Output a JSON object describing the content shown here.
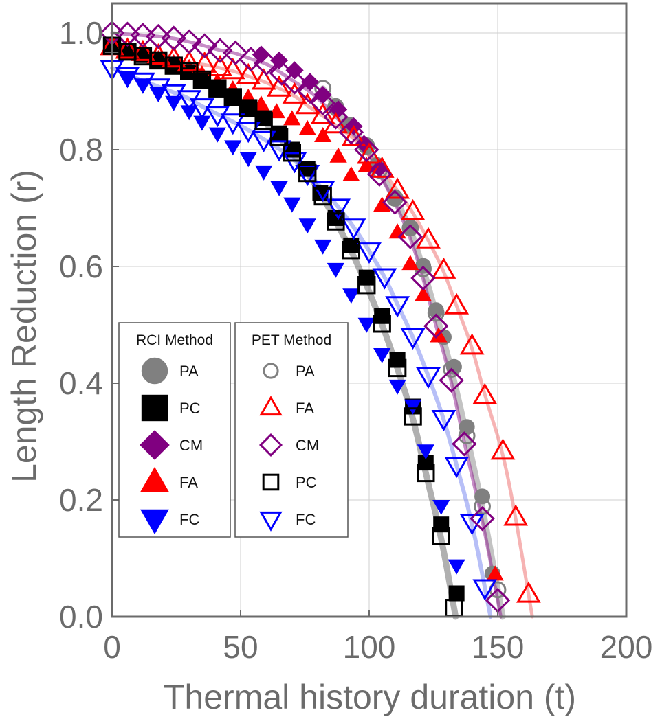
{
  "chart_data": {
    "type": "scatter",
    "xlabel": "Thermal history duration (t)",
    "ylabel": "Length Reduction (r)",
    "xlim": [
      0,
      200
    ],
    "ylim": [
      0,
      1.05
    ],
    "x_ticks": [
      0,
      50,
      100,
      150,
      200
    ],
    "y_ticks": [
      0.0,
      0.2,
      0.4,
      0.6,
      0.8,
      1.0
    ],
    "x_tick_labels": [
      "0",
      "50",
      "100",
      "150",
      "200"
    ],
    "y_tick_labels": [
      "0.0",
      "0.2",
      "0.4",
      "0.6",
      "0.8",
      "1.0"
    ],
    "grid": true,
    "legends": [
      {
        "title": "RCI Method",
        "entries": [
          {
            "label": "PA",
            "series": "rci_pa"
          },
          {
            "label": "PC",
            "series": "rci_pc"
          },
          {
            "label": "CM",
            "series": "rci_cm"
          },
          {
            "label": "FA",
            "series": "rci_fa"
          },
          {
            "label": "FC",
            "series": "rci_fc"
          }
        ]
      },
      {
        "title": "PET Method",
        "entries": [
          {
            "label": "PA",
            "series": "pet_pa"
          },
          {
            "label": "FA",
            "series": "pet_fa"
          },
          {
            "label": "CM",
            "series": "pet_cm"
          },
          {
            "label": "PC",
            "series": "pet_pc"
          },
          {
            "label": "FC",
            "series": "pet_fc"
          }
        ]
      }
    ],
    "fit_curves": [
      {
        "name": "PA fit",
        "color": "#808080",
        "t_end": 152,
        "a": 0.0009091,
        "b": 0.0006353,
        "c": 0.000335,
        "a_m": 0.0009091,
        "t0": 0
      },
      {
        "name": "CM fit",
        "color": "#800080",
        "t_end": 151.5,
        "a": 0.0009091,
        "b": 0.0006353,
        "c": 0.000335,
        "t0": 0
      },
      {
        "name": "FA fit",
        "color": "#f08080",
        "t_end": 164,
        "a": 0.0009091,
        "b": 0.0006353,
        "c": 0.000335,
        "t0": 0
      },
      {
        "name": "PC fit",
        "color": "#606060",
        "t_end": 135,
        "a": 0.0009091,
        "b": 0.0006353,
        "c": 0.000335,
        "t0": 0
      },
      {
        "name": "FC fit",
        "color": "#8090f0",
        "t_end": 146,
        "a": 0.0009091,
        "b": 0.0006353,
        "c": 0.000335,
        "t0": 0
      }
    ],
    "series": [
      {
        "name": "rci_pa",
        "label": "PA",
        "marker": "circle",
        "fill": "#808080",
        "stroke": "#808080",
        "x": [
          87,
          92,
          99,
          103,
          110,
          116,
          121,
          126,
          129,
          133,
          138,
          144,
          148
        ],
        "y": [
          0.875,
          0.843,
          0.808,
          0.774,
          0.719,
          0.666,
          0.601,
          0.525,
          0.479,
          0.428,
          0.325,
          0.206,
          0.074
        ]
      },
      {
        "name": "pet_pa",
        "label": "PA",
        "marker": "circle-open",
        "fill": "none",
        "stroke": "#808080",
        "x": [
          82,
          87,
          92,
          99,
          104,
          110,
          116,
          121,
          126,
          132,
          138,
          144,
          150
        ],
        "y": [
          0.905,
          0.873,
          0.842,
          0.806,
          0.765,
          0.717,
          0.666,
          0.596,
          0.52,
          0.424,
          0.31,
          0.189,
          0.046
        ]
      },
      {
        "name": "rci_cm",
        "label": "CM",
        "marker": "diamond",
        "fill": "#800080",
        "stroke": "#800080",
        "x": [
          58,
          65,
          71,
          77,
          82,
          88,
          94,
          98,
          104
        ],
        "y": [
          0.963,
          0.953,
          0.936,
          0.916,
          0.894,
          0.869,
          0.84,
          0.81,
          0.768
        ]
      },
      {
        "name": "pet_cm",
        "label": "CM",
        "marker": "diamond-open",
        "fill": "none",
        "stroke": "#800080",
        "x": [
          0,
          6,
          12,
          18,
          24,
          30,
          36,
          42,
          48,
          54,
          60,
          66,
          71,
          77,
          82,
          87,
          93,
          99,
          104,
          110,
          116,
          121,
          126,
          132,
          137,
          144,
          150
        ],
        "y": [
          1.0,
          0.998,
          0.996,
          0.994,
          0.991,
          0.985,
          0.978,
          0.97,
          0.966,
          0.955,
          0.948,
          0.931,
          0.916,
          0.9,
          0.88,
          0.856,
          0.83,
          0.8,
          0.758,
          0.71,
          0.651,
          0.58,
          0.498,
          0.405,
          0.296,
          0.168,
          0.028
        ]
      },
      {
        "name": "rci_fa",
        "label": "FA",
        "marker": "triangle-up",
        "fill": "#ff0000",
        "stroke": "#ff0000",
        "x": [
          6,
          12,
          18,
          24,
          30,
          35,
          41,
          47,
          53,
          58,
          64,
          70,
          76,
          82,
          88,
          93,
          99,
          105,
          111,
          116,
          121,
          127,
          149
        ],
        "y": [
          0.965,
          0.96,
          0.955,
          0.948,
          0.94,
          0.929,
          0.916,
          0.903,
          0.889,
          0.877,
          0.864,
          0.852,
          0.835,
          0.823,
          0.788,
          0.756,
          0.772,
          0.704,
          0.658,
          0.604,
          0.55,
          0.48,
          0.072
        ]
      },
      {
        "name": "pet_fa",
        "label": "FA",
        "marker": "triangle-up-open",
        "fill": "none",
        "stroke": "#ff0000",
        "x": [
          0,
          6,
          12,
          18,
          24,
          30,
          36,
          42,
          47,
          53,
          59,
          65,
          71,
          76,
          82,
          87,
          94,
          100,
          105,
          111,
          117,
          123,
          129,
          134,
          140,
          145,
          152,
          157,
          162
        ],
        "y": [
          0.976,
          0.97,
          0.966,
          0.96,
          0.955,
          0.948,
          0.946,
          0.94,
          0.935,
          0.926,
          0.917,
          0.905,
          0.893,
          0.875,
          0.858,
          0.842,
          0.82,
          0.79,
          0.766,
          0.73,
          0.693,
          0.645,
          0.593,
          0.532,
          0.463,
          0.378,
          0.283,
          0.17,
          0.038
        ]
      },
      {
        "name": "rci_pc",
        "label": "PC",
        "marker": "square",
        "fill": "#000000",
        "stroke": "#000000",
        "x": [
          0,
          6,
          12,
          18,
          24,
          30,
          35,
          41,
          47,
          53,
          59,
          65,
          70,
          76,
          81,
          87,
          93,
          99,
          105,
          111,
          117,
          122,
          128,
          134
        ],
        "y": [
          0.98,
          0.97,
          0.962,
          0.953,
          0.944,
          0.933,
          0.92,
          0.906,
          0.89,
          0.873,
          0.854,
          0.828,
          0.8,
          0.767,
          0.726,
          0.683,
          0.636,
          0.581,
          0.515,
          0.44,
          0.36,
          0.264,
          0.158,
          0.04
        ]
      },
      {
        "name": "pet_pc",
        "label": "PC",
        "marker": "square-open",
        "fill": "none",
        "stroke": "#000000",
        "x": [
          0,
          6,
          12,
          18,
          24,
          30,
          35,
          41,
          47,
          53,
          59,
          65,
          70,
          76,
          82,
          87,
          93,
          99,
          105,
          111,
          117,
          122,
          128,
          133
        ],
        "y": [
          0.978,
          0.968,
          0.96,
          0.953,
          0.944,
          0.935,
          0.92,
          0.905,
          0.89,
          0.871,
          0.849,
          0.822,
          0.795,
          0.76,
          0.72,
          0.677,
          0.628,
          0.568,
          0.502,
          0.426,
          0.343,
          0.246,
          0.138,
          0.015
        ]
      },
      {
        "name": "rci_fc",
        "label": "FC",
        "marker": "triangle-down",
        "fill": "#0000ff",
        "stroke": "#0000ff",
        "x": [
          6,
          12,
          18,
          24,
          30,
          35,
          41,
          47,
          53,
          59,
          65,
          70,
          76,
          82,
          87,
          93,
          99,
          105,
          111,
          117,
          122,
          128,
          134
        ],
        "y": [
          0.925,
          0.912,
          0.897,
          0.882,
          0.866,
          0.848,
          0.828,
          0.806,
          0.786,
          0.763,
          0.736,
          0.708,
          0.672,
          0.636,
          0.596,
          0.552,
          0.502,
          0.45,
          0.396,
          0.362,
          0.285,
          0.19,
          0.088
        ]
      },
      {
        "name": "pet_fc",
        "label": "FC",
        "marker": "triangle-down-open",
        "fill": "none",
        "stroke": "#0000ff",
        "x": [
          0,
          6,
          12,
          18,
          24,
          30,
          35,
          41,
          47,
          53,
          59,
          65,
          71,
          76,
          82,
          88,
          94,
          100,
          106,
          111,
          117,
          123,
          129,
          134,
          140,
          145
        ],
        "y": [
          0.94,
          0.928,
          0.918,
          0.908,
          0.898,
          0.888,
          0.874,
          0.861,
          0.848,
          0.834,
          0.818,
          0.802,
          0.782,
          0.76,
          0.733,
          0.702,
          0.668,
          0.627,
          0.583,
          0.535,
          0.48,
          0.413,
          0.34,
          0.26,
          0.162,
          0.05
        ]
      }
    ]
  }
}
